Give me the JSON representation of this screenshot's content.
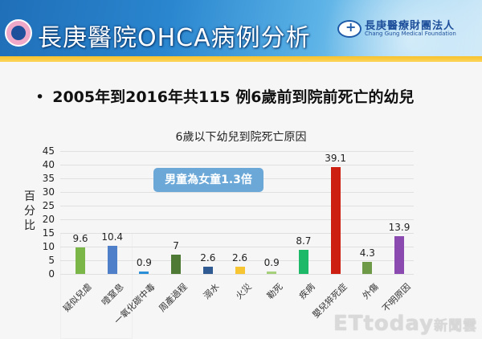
{
  "header": {
    "title": "長庚醫院OHCA病例分析",
    "org_name_cn": "長庚醫療財團法人",
    "org_name_en": "Chang Gung Medical Foundation"
  },
  "bullet": {
    "marker": "•",
    "text": "2005年到2016年共115 例6歲前到院前死亡的幼兒"
  },
  "callout": "男童為女童1.3倍",
  "watermark": {
    "brand": "ETtoday",
    "suffix": "新聞雲"
  },
  "chart_data": {
    "type": "bar",
    "title": "6歲以下幼兒到院死亡原因",
    "xlabel": "",
    "ylabel": "百分比",
    "ylim": [
      0,
      45
    ],
    "yticks": [
      0,
      5,
      10,
      15,
      20,
      25,
      30,
      35,
      40,
      45
    ],
    "grid": true,
    "legend": "none",
    "categories": [
      "疑似兒虐",
      "噎窒息",
      "一氧化碳中毒",
      "周產過程",
      "溺水",
      "火災",
      "勒死",
      "疾病",
      "嬰兒猝死症",
      "外傷",
      "不明原因"
    ],
    "values": [
      9.6,
      10.4,
      0.9,
      7,
      2.6,
      2.6,
      0.9,
      8.7,
      39.1,
      4.3,
      13.9
    ],
    "value_labels": [
      "9.6",
      "10.4",
      "0.9",
      "7",
      "2.6",
      "2.6",
      "0.9",
      "8.7",
      "39.1",
      "4.3",
      "13.9"
    ],
    "colors": [
      "#7ab648",
      "#4f7fc8",
      "#2a8fd6",
      "#4f7a35",
      "#2f5a92",
      "#f7c531",
      "#a5cf7a",
      "#1db868",
      "#cc1f12",
      "#6e9a48",
      "#8a4ab0"
    ]
  }
}
